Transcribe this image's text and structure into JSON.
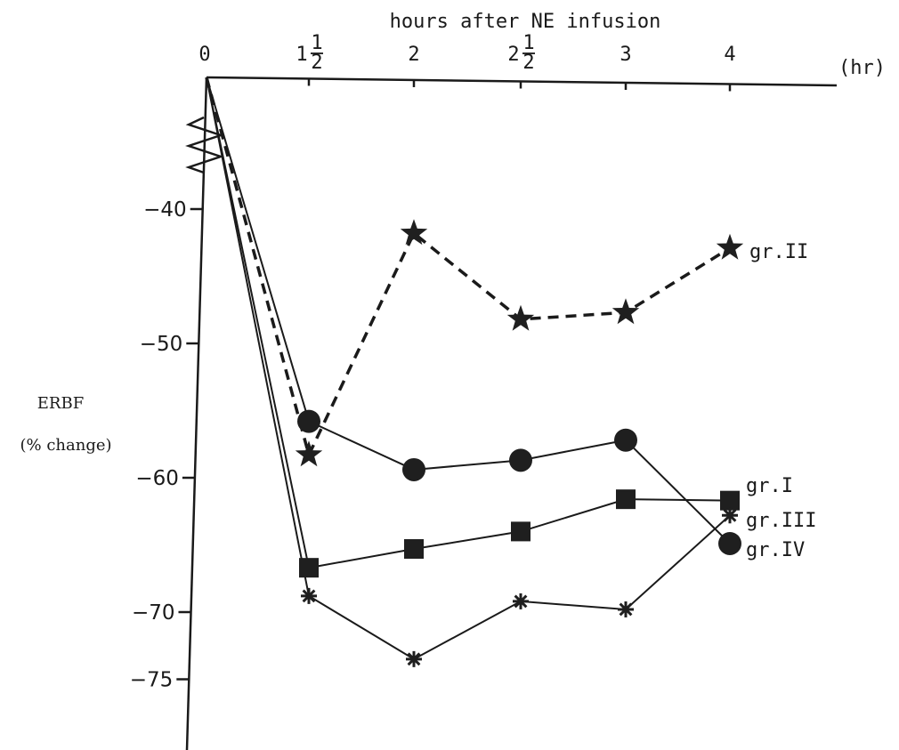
{
  "chart_data": {
    "type": "line",
    "title": "hours after NE infusion",
    "ylabel": [
      "ERBF",
      "(% change)"
    ],
    "x_unit": "(hr)",
    "x_ticks": [
      {
        "value": 0,
        "label": "0"
      },
      {
        "value": 1.5,
        "label": "1",
        "frac_num": "1",
        "frac_den": "2"
      },
      {
        "value": 2,
        "label": "2"
      },
      {
        "value": 2.5,
        "label": "2",
        "frac_num": "1",
        "frac_den": "2"
      },
      {
        "value": 3,
        "label": "3"
      },
      {
        "value": 4,
        "label": "4"
      }
    ],
    "y_ticks": [
      -40,
      -50,
      -60,
      -70,
      -75
    ],
    "ylim": [
      -80,
      0
    ],
    "series": [
      {
        "name": "gr.I",
        "marker": "square",
        "line": "solid",
        "x": [
          0,
          1.5,
          2,
          2.5,
          3,
          4
        ],
        "values": [
          0,
          -66.7,
          -65.3,
          -64.0,
          -61.6,
          -61.7
        ]
      },
      {
        "name": "gr.II",
        "marker": "star",
        "line": "dashed",
        "x": [
          0,
          1.5,
          2,
          2.5,
          3,
          4
        ],
        "values": [
          0,
          -58.3,
          -41.8,
          -48.2,
          -47.7,
          -42.9
        ]
      },
      {
        "name": "gr.III",
        "marker": "asterisk",
        "line": "solid",
        "x": [
          0,
          1.5,
          2,
          2.5,
          3,
          4
        ],
        "values": [
          0,
          -68.8,
          -73.5,
          -69.2,
          -69.8,
          -62.8
        ]
      },
      {
        "name": "gr.IV",
        "marker": "circle",
        "line": "solid",
        "x": [
          0,
          1.5,
          2,
          2.5,
          3,
          4
        ],
        "values": [
          0,
          -55.8,
          -59.4,
          -58.7,
          -57.2,
          -64.9
        ]
      }
    ]
  }
}
